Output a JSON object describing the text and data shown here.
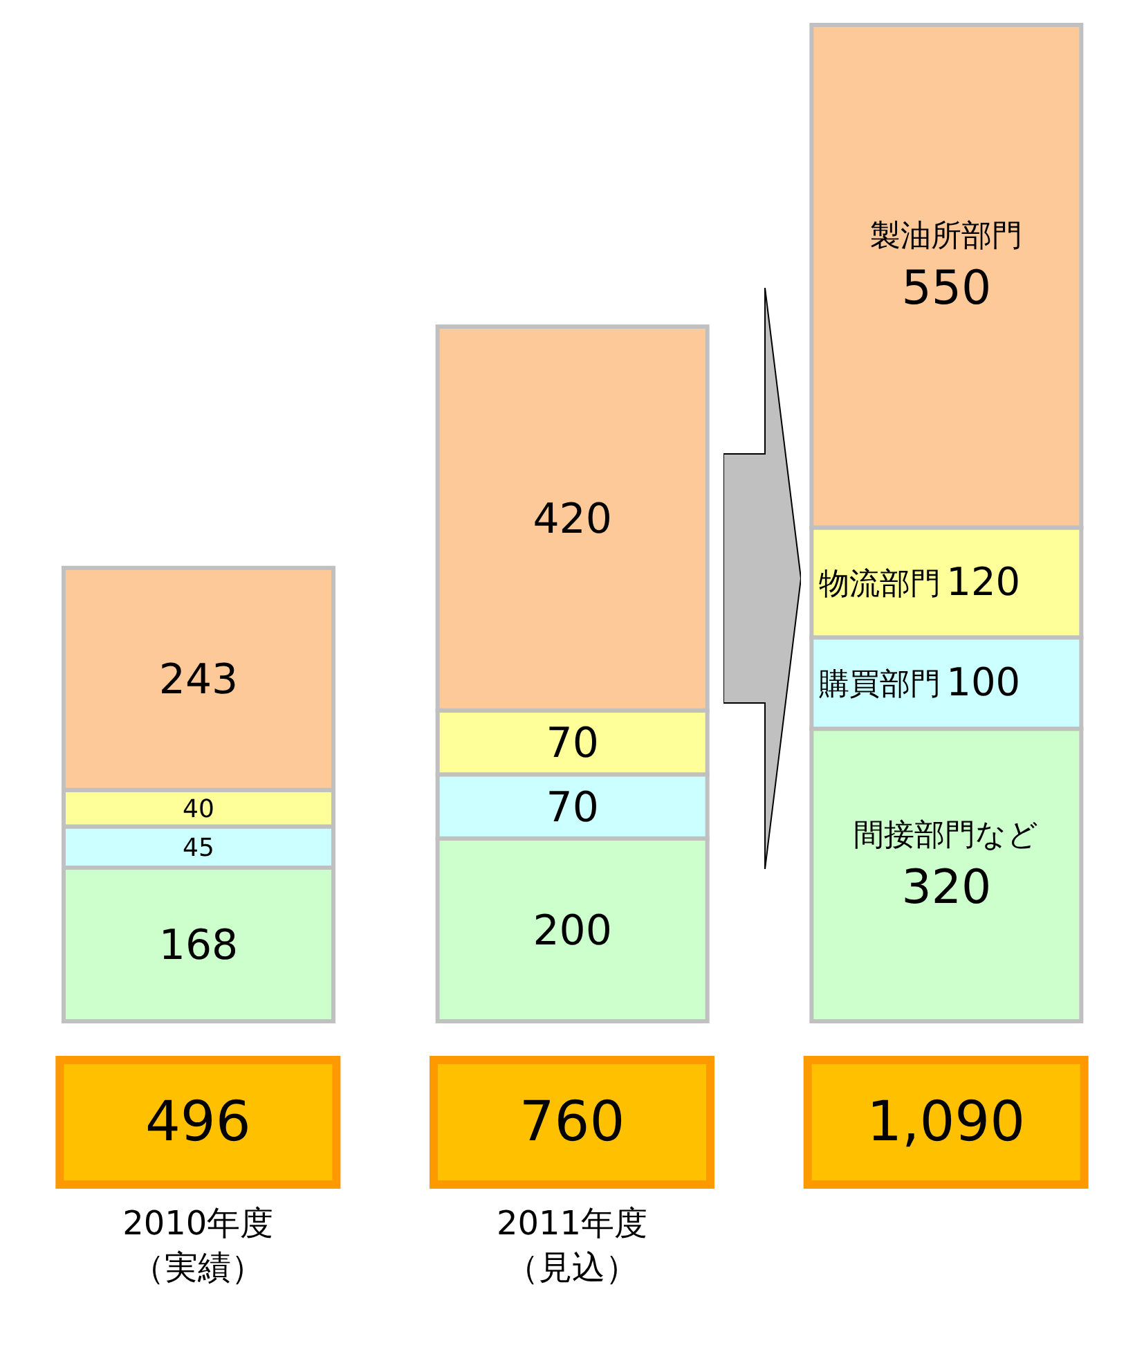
{
  "chart_data": {
    "type": "bar",
    "stacked": true,
    "data_labels": true,
    "categories": [
      "2010年度（実績）",
      "2011年度（見込）",
      null
    ],
    "series": [
      {
        "name": "間接部門など",
        "color": "#ccffcc",
        "values": [
          168,
          200,
          320
        ]
      },
      {
        "name": "購買部門",
        "color": "#ccffff",
        "values": [
          45,
          70,
          100
        ]
      },
      {
        "name": "物流部門",
        "color": "#ffff99",
        "values": [
          40,
          70,
          120
        ]
      },
      {
        "name": "製油所部門",
        "color": "#fdc998",
        "values": [
          243,
          420,
          550
        ]
      }
    ],
    "totals": [
      "496",
      "760",
      "1,090"
    ]
  }
}
